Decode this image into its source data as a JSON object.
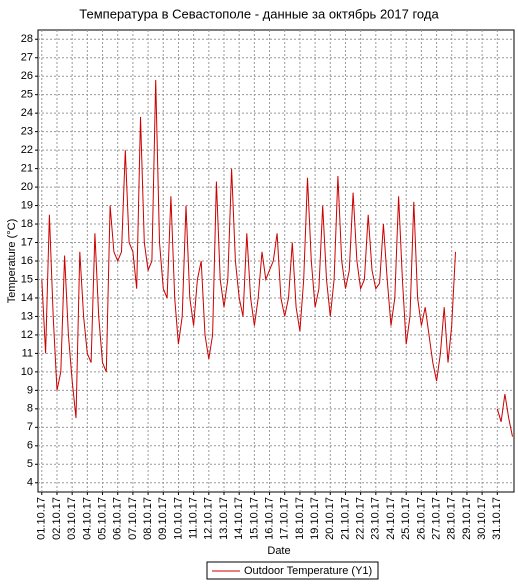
{
  "chart_data": {
    "type": "line",
    "title": "Температура в Севастополе - данные за октябрь 2017 года",
    "xlabel": "Date",
    "ylabel": "Temperature (°C)",
    "x": [
      0,
      0.25,
      0.5,
      0.75,
      1,
      1.25,
      1.5,
      1.75,
      2,
      2.25,
      2.5,
      2.75,
      3,
      3.25,
      3.5,
      3.75,
      4,
      4.25,
      4.5,
      4.75,
      5,
      5.25,
      5.5,
      5.75,
      6,
      6.25,
      6.5,
      6.75,
      7,
      7.25,
      7.5,
      7.75,
      8,
      8.25,
      8.5,
      8.75,
      9,
      9.25,
      9.5,
      9.75,
      10,
      10.25,
      10.5,
      10.75,
      11,
      11.25,
      11.5,
      11.75,
      12,
      12.25,
      12.5,
      12.75,
      13,
      13.25,
      13.5,
      13.75,
      14,
      14.25,
      14.5,
      14.75,
      15,
      15.25,
      15.5,
      15.75,
      16,
      16.25,
      16.5,
      16.75,
      17,
      17.25,
      17.5,
      17.75,
      18,
      18.25,
      18.5,
      18.75,
      19,
      19.25,
      19.5,
      19.75,
      20,
      20.25,
      20.5,
      20.75,
      21,
      21.25,
      21.5,
      21.75,
      22,
      22.25,
      22.5,
      22.75,
      23,
      23.25,
      23.5,
      23.75,
      24,
      24.25,
      24.5,
      24.75,
      25,
      25.25,
      25.5,
      25.75,
      26,
      26.25,
      26.5,
      26.75,
      27,
      27.25,
      28.5,
      30,
      30.25,
      30.5,
      30.75,
      31
    ],
    "series": [
      {
        "name": "Outdoor Temperature (Y1)",
        "color": "#cc0000",
        "values": [
          15,
          11,
          18.5,
          13,
          9,
          10,
          16.3,
          12,
          9.5,
          7.5,
          16.5,
          13,
          11,
          10.5,
          17.5,
          13,
          10.5,
          10,
          19,
          16.5,
          16,
          16.5,
          22,
          17,
          16.5,
          14.5,
          23.8,
          17,
          15.5,
          16,
          25.8,
          17,
          14.5,
          14,
          19.5,
          14,
          11.5,
          13,
          19,
          14,
          12.5,
          15,
          16,
          12,
          10.7,
          12,
          20.3,
          15,
          13.5,
          15,
          21,
          16,
          14,
          13,
          17.5,
          14,
          12.5,
          14,
          16.5,
          15,
          15.5,
          16,
          17.5,
          14,
          13,
          14,
          17,
          13.5,
          12.2,
          15,
          20.5,
          16,
          13.5,
          14.5,
          19,
          15,
          13,
          15,
          20.6,
          16,
          14.5,
          15.5,
          19.7,
          16,
          14.5,
          15,
          18.5,
          15.5,
          14.5,
          14.8,
          18,
          15,
          12.5,
          14,
          19.5,
          15,
          11.5,
          13,
          19.2,
          14,
          12.5,
          13.5,
          12,
          10.5,
          9.5,
          11,
          13.5,
          10.5,
          12.5,
          16.5,
          null,
          8,
          7.3,
          8.8,
          7.5,
          6.5
        ]
      }
    ],
    "xlim": [
      -0.25,
      31.1
    ],
    "ylim": [
      3.5,
      28.5
    ],
    "xticks": [
      {
        "value": 0,
        "label": "01.10.17"
      },
      {
        "value": 1,
        "label": "02.10.17"
      },
      {
        "value": 2,
        "label": "03.10.17"
      },
      {
        "value": 3,
        "label": "04.10.17"
      },
      {
        "value": 4,
        "label": "05.10.17"
      },
      {
        "value": 5,
        "label": "06.10.17"
      },
      {
        "value": 6,
        "label": "07.10.17"
      },
      {
        "value": 7,
        "label": "08.10.17"
      },
      {
        "value": 8,
        "label": "09.10.17"
      },
      {
        "value": 9,
        "label": "10.10.17"
      },
      {
        "value": 10,
        "label": "11.10.17"
      },
      {
        "value": 11,
        "label": "12.10.17"
      },
      {
        "value": 12,
        "label": "13.10.17"
      },
      {
        "value": 13,
        "label": "14.10.17"
      },
      {
        "value": 14,
        "label": "15.10.17"
      },
      {
        "value": 15,
        "label": "16.10.17"
      },
      {
        "value": 16,
        "label": "17.10.17"
      },
      {
        "value": 17,
        "label": "18.10.17"
      },
      {
        "value": 18,
        "label": "19.10.17"
      },
      {
        "value": 19,
        "label": "20.10.17"
      },
      {
        "value": 20,
        "label": "21.10.17"
      },
      {
        "value": 21,
        "label": "22.10.17"
      },
      {
        "value": 22,
        "label": "23.10.17"
      },
      {
        "value": 23,
        "label": "24.10.17"
      },
      {
        "value": 24,
        "label": "25.10.17"
      },
      {
        "value": 25,
        "label": "26.10.17"
      },
      {
        "value": 26,
        "label": "27.10.17"
      },
      {
        "value": 27,
        "label": "28.10.17"
      },
      {
        "value": 28,
        "label": "29.10.17"
      },
      {
        "value": 29,
        "label": "30.10.17"
      },
      {
        "value": 30,
        "label": "31.10.17"
      }
    ],
    "yticks": [
      4,
      5,
      6,
      7,
      8,
      9,
      10,
      11,
      12,
      13,
      14,
      15,
      16,
      17,
      18,
      19,
      20,
      21,
      22,
      23,
      24,
      25,
      26,
      27,
      28
    ],
    "grid": true,
    "legend": "bottom"
  }
}
